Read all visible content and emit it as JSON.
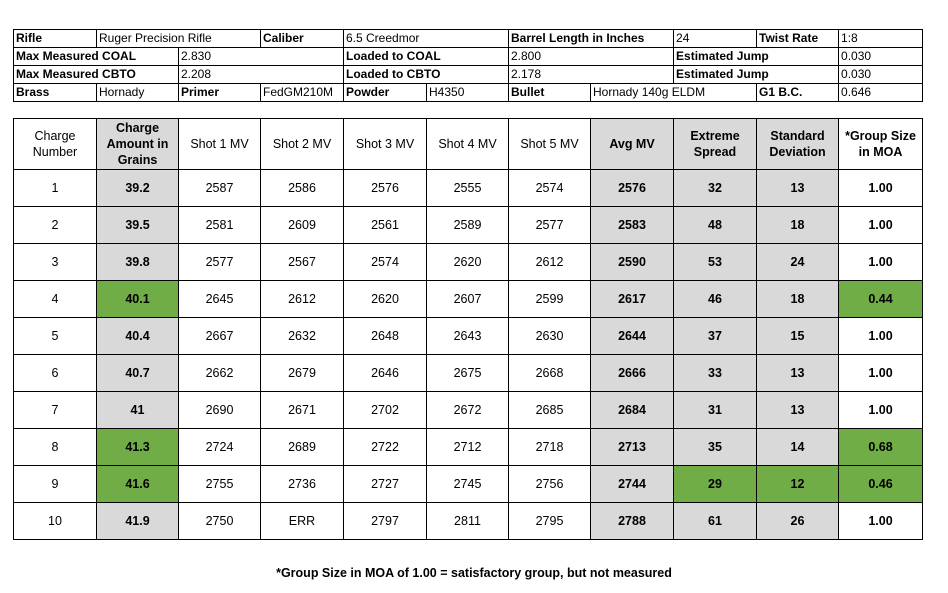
{
  "header": {
    "rows": [
      [
        {
          "text": "Rifle",
          "label": true,
          "span": 1
        },
        {
          "text": "Ruger Precision Rifle",
          "label": false,
          "span": 2
        },
        {
          "text": "Caliber",
          "label": true,
          "span": 1
        },
        {
          "text": "6.5 Creedmor",
          "label": false,
          "span": 2
        },
        {
          "text": "Barrel Length in Inches",
          "label": true,
          "span": 2
        },
        {
          "text": "24",
          "label": false,
          "span": 1
        },
        {
          "text": "Twist Rate",
          "label": true,
          "span": 1
        },
        {
          "text": "1:8",
          "label": false,
          "span": 1
        }
      ],
      [
        {
          "text": "Max Measured COAL",
          "label": true,
          "span": 2
        },
        {
          "text": "2.830",
          "label": false,
          "span": 2
        },
        {
          "text": "Loaded to COAL",
          "label": true,
          "span": 2
        },
        {
          "text": "2.800",
          "label": false,
          "span": 2
        },
        {
          "text": "Estimated Jump",
          "label": true,
          "span": 2
        },
        {
          "text": "0.030",
          "label": false,
          "span": 1
        }
      ],
      [
        {
          "text": "Max Measured CBTO",
          "label": true,
          "span": 2
        },
        {
          "text": "2.208",
          "label": false,
          "span": 2
        },
        {
          "text": "Loaded to CBTO",
          "label": true,
          "span": 2
        },
        {
          "text": "2.178",
          "label": false,
          "span": 2
        },
        {
          "text": "Estimated Jump",
          "label": true,
          "span": 2
        },
        {
          "text": "0.030",
          "label": false,
          "span": 1
        }
      ],
      [
        {
          "text": "Brass",
          "label": true,
          "span": 1
        },
        {
          "text": "Hornady",
          "label": false,
          "span": 1
        },
        {
          "text": "Primer",
          "label": true,
          "span": 1
        },
        {
          "text": "FedGM210M",
          "label": false,
          "span": 1
        },
        {
          "text": "Powder",
          "label": true,
          "span": 1
        },
        {
          "text": "H4350",
          "label": false,
          "span": 1
        },
        {
          "text": "Bullet",
          "label": true,
          "span": 1
        },
        {
          "text": "Hornady 140g ELDM",
          "label": false,
          "span": 2
        },
        {
          "text": "G1 B.C.",
          "label": true,
          "span": 1
        },
        {
          "text": "0.646",
          "label": false,
          "span": 1
        }
      ]
    ]
  },
  "table": {
    "columns": [
      {
        "label": "Charge Number",
        "bold": false
      },
      {
        "label": "Charge Amount in Grains",
        "bold": true
      },
      {
        "label": "Shot 1 MV",
        "bold": false
      },
      {
        "label": "Shot 2 MV",
        "bold": false
      },
      {
        "label": "Shot 3 MV",
        "bold": false
      },
      {
        "label": "Shot 4 MV",
        "bold": false
      },
      {
        "label": "Shot 5 MV",
        "bold": false
      },
      {
        "label": "Avg MV",
        "bold": true
      },
      {
        "label": "Extreme Spread",
        "bold": true
      },
      {
        "label": "Standard Deviation",
        "bold": true
      },
      {
        "label": "*Group Size in MOA",
        "bold": true
      }
    ],
    "colors": {
      "gray": "#d9d9d9",
      "green": "#70ad47"
    },
    "rows": [
      {
        "cells": [
          "1",
          "39.2",
          "2587",
          "2586",
          "2576",
          "2555",
          "2574",
          "2576",
          "32",
          "13",
          "1.00"
        ],
        "highlight": []
      },
      {
        "cells": [
          "2",
          "39.5",
          "2581",
          "2609",
          "2561",
          "2589",
          "2577",
          "2583",
          "48",
          "18",
          "1.00"
        ],
        "highlight": []
      },
      {
        "cells": [
          "3",
          "39.8",
          "2577",
          "2567",
          "2574",
          "2620",
          "2612",
          "2590",
          "53",
          "24",
          "1.00"
        ],
        "highlight": []
      },
      {
        "cells": [
          "4",
          "40.1",
          "2645",
          "2612",
          "2620",
          "2607",
          "2599",
          "2617",
          "46",
          "18",
          "0.44"
        ],
        "highlight": [
          1,
          10
        ]
      },
      {
        "cells": [
          "5",
          "40.4",
          "2667",
          "2632",
          "2648",
          "2643",
          "2630",
          "2644",
          "37",
          "15",
          "1.00"
        ],
        "highlight": []
      },
      {
        "cells": [
          "6",
          "40.7",
          "2662",
          "2679",
          "2646",
          "2675",
          "2668",
          "2666",
          "33",
          "13",
          "1.00"
        ],
        "highlight": []
      },
      {
        "cells": [
          "7",
          "41",
          "2690",
          "2671",
          "2702",
          "2672",
          "2685",
          "2684",
          "31",
          "13",
          "1.00"
        ],
        "highlight": []
      },
      {
        "cells": [
          "8",
          "41.3",
          "2724",
          "2689",
          "2722",
          "2712",
          "2718",
          "2713",
          "35",
          "14",
          "0.68"
        ],
        "highlight": [
          1,
          10
        ]
      },
      {
        "cells": [
          "9",
          "41.6",
          "2755",
          "2736",
          "2727",
          "2745",
          "2756",
          "2744",
          "29",
          "12",
          "0.46"
        ],
        "highlight": [
          1,
          8,
          9,
          10
        ]
      },
      {
        "cells": [
          "10",
          "41.9",
          "2750",
          "ERR",
          "2797",
          "2811",
          "2795",
          "2788",
          "61",
          "26",
          "1.00"
        ],
        "highlight": []
      }
    ]
  },
  "footnote": "*Group Size in MOA of 1.00 = satisfactory group, but not measured"
}
